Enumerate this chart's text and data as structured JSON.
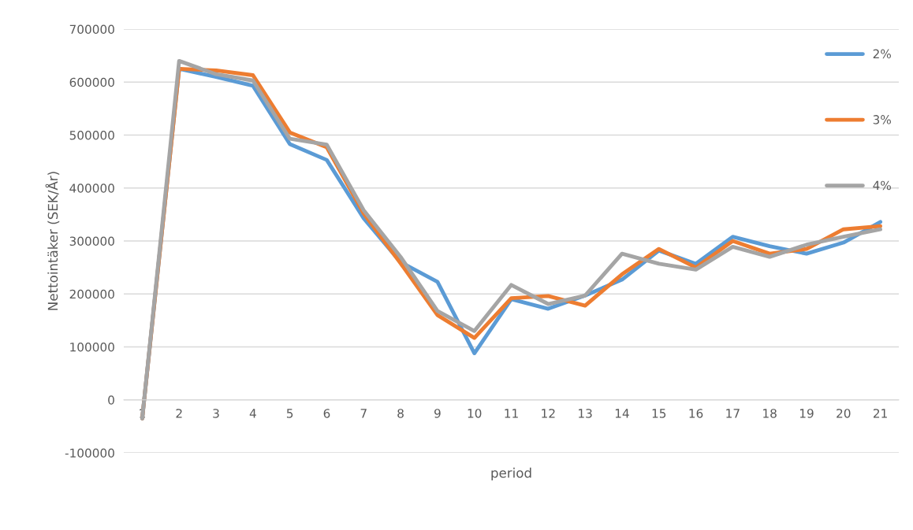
{
  "chart_data": {
    "type": "line",
    "xlabel": "period",
    "ylabel": "Nettointäker (SEK/År)",
    "categories": [
      "1",
      "2",
      "3",
      "4",
      "5",
      "6",
      "7",
      "8",
      "9",
      "10",
      "11",
      "12",
      "13",
      "14",
      "15",
      "16",
      "17",
      "18",
      "19",
      "20",
      "21"
    ],
    "series": [
      {
        "name": "2%",
        "color": "#5b9bd5",
        "values": [
          -35000,
          625000,
          610000,
          593000,
          483000,
          453000,
          343000,
          260000,
          223000,
          88000,
          190000,
          172000,
          197000,
          227000,
          282000,
          257000,
          308000,
          290000,
          276000,
          297000,
          336000
        ]
      },
      {
        "name": "3%",
        "color": "#ed7d31",
        "values": [
          -35000,
          625000,
          622000,
          613000,
          505000,
          477000,
          352000,
          258000,
          160000,
          117000,
          192000,
          196000,
          178000,
          237000,
          285000,
          250000,
          300000,
          276000,
          285000,
          322000,
          328000
        ]
      },
      {
        "name": "4%",
        "color": "#a5a5a5",
        "values": [
          -35000,
          640000,
          615000,
          603000,
          493000,
          482000,
          358000,
          270000,
          168000,
          130000,
          217000,
          181000,
          197000,
          276000,
          257000,
          246000,
          289000,
          270000,
          293000,
          308000,
          322000
        ]
      }
    ],
    "ylim": [
      -100000,
      700000
    ],
    "yticks": [
      -100000,
      0,
      100000,
      200000,
      300000,
      400000,
      500000,
      600000,
      700000
    ],
    "grid": "y",
    "legend": "top right",
    "marker": "none",
    "line_style": "solid"
  }
}
